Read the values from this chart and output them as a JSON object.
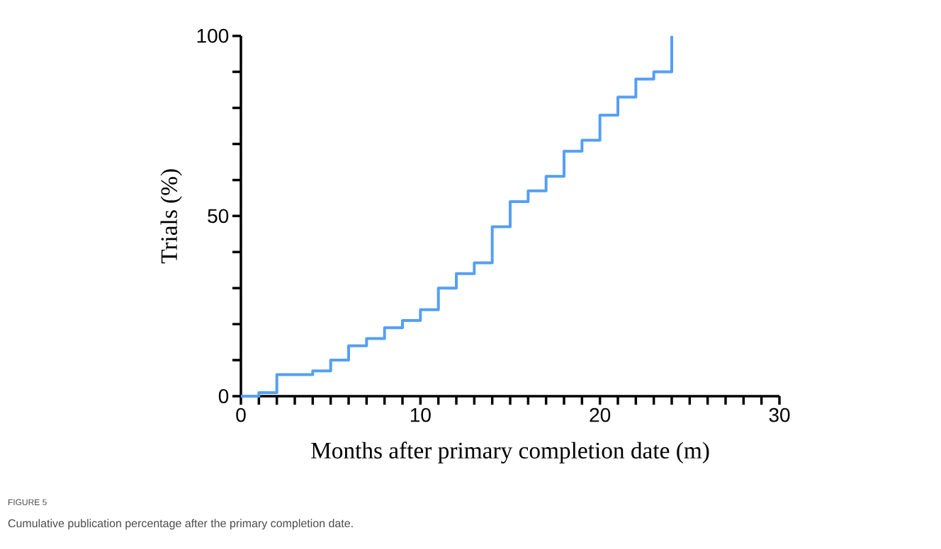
{
  "chart_data": {
    "type": "step",
    "xlabel": "Months after primary completion date (m)",
    "ylabel": "Trials (%)",
    "annotations": [
      "FIGURE 5",
      "Cumulative publication percentage after the primary completion date."
    ],
    "x": [
      0,
      1,
      2,
      3,
      4,
      5,
      6,
      7,
      8,
      9,
      10,
      11,
      12,
      13,
      14,
      15,
      16,
      17,
      18,
      19,
      20,
      21,
      22,
      23,
      24
    ],
    "series": [
      {
        "color": "#559ff5",
        "values": [
          0,
          1,
          6,
          6,
          7,
          10,
          14,
          16,
          19,
          21,
          24,
          30,
          34,
          37,
          47,
          54,
          57,
          61,
          68,
          71,
          78,
          83,
          88,
          90,
          100
        ]
      }
    ],
    "xlim": [
      0,
      30
    ],
    "ylim": [
      0,
      100
    ],
    "xticks": [
      0,
      {
        "value": 1,
        "label": null
      },
      {
        "value": 2,
        "label": null
      },
      {
        "value": 3,
        "label": null
      },
      {
        "value": 4,
        "label": null
      },
      {
        "value": 5,
        "label": null
      },
      {
        "value": 6,
        "label": null
      },
      {
        "value": 7,
        "label": null
      },
      {
        "value": 8,
        "label": null
      },
      {
        "value": 9,
        "label": null
      },
      10,
      {
        "value": 11,
        "label": null
      },
      {
        "value": 12,
        "label": null
      },
      {
        "value": 13,
        "label": null
      },
      {
        "value": 14,
        "label": null
      },
      {
        "value": 15,
        "label": null
      },
      {
        "value": 16,
        "label": null
      },
      {
        "value": 17,
        "label": null
      },
      {
        "value": 18,
        "label": null
      },
      {
        "value": 19,
        "label": null
      },
      20,
      {
        "value": 21,
        "label": null
      },
      {
        "value": 22,
        "label": null
      },
      {
        "value": 23,
        "label": null
      },
      {
        "value": 24,
        "label": null
      },
      {
        "value": 25,
        "label": null
      },
      {
        "value": 26,
        "label": null
      },
      {
        "value": 27,
        "label": null
      },
      {
        "value": 28,
        "label": null
      },
      {
        "value": 29,
        "label": null
      },
      30
    ],
    "yticks": [
      0,
      {
        "value": 10,
        "label": null
      },
      {
        "value": 20,
        "label": null
      },
      {
        "value": 30,
        "label": null
      },
      {
        "value": 40,
        "label": null
      },
      50,
      {
        "value": 60,
        "label": null
      },
      {
        "value": 70,
        "label": null
      },
      {
        "value": 80,
        "label": null
      },
      {
        "value": 90,
        "label": null
      },
      100
    ],
    "grid": false,
    "marker": "none",
    "line_style": "solid"
  }
}
